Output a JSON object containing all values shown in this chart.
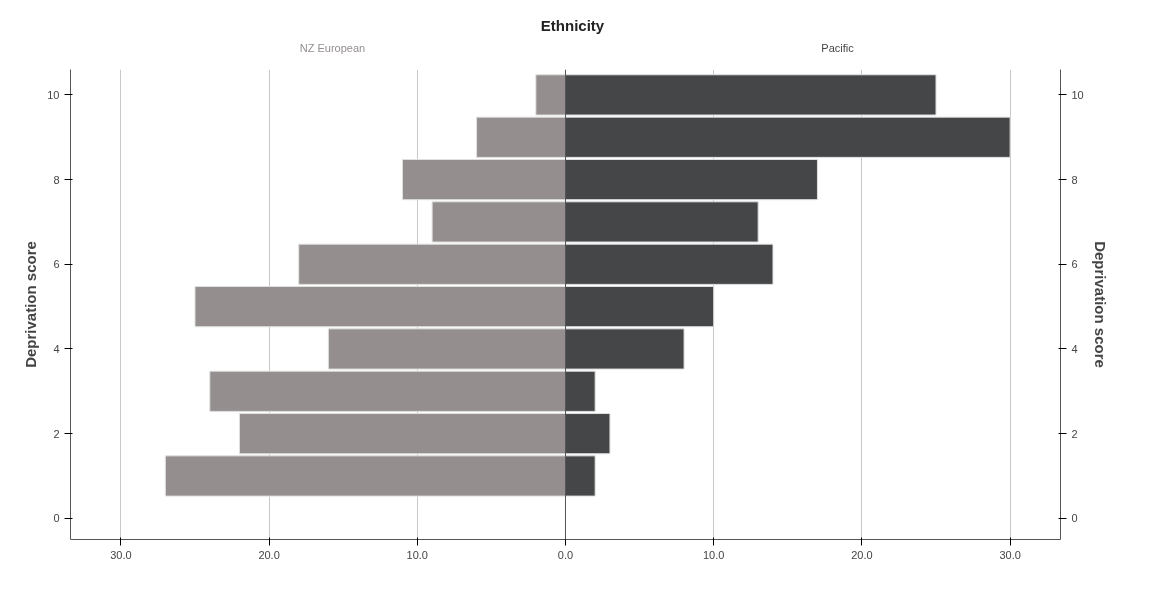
{
  "chart_data": {
    "type": "bar",
    "orientation": "horizontal",
    "title": "Ethnicity",
    "ylabel": "Deprivation score",
    "y2label": "Deprivation score",
    "x": [
      1,
      2,
      3,
      4,
      5,
      6,
      7,
      8,
      9,
      10
    ],
    "series": [
      {
        "name": "NZ European",
        "color": "#948f8e",
        "values": [
          -27,
          -22,
          -24,
          -16,
          -25,
          -18,
          -9,
          -11,
          -6,
          -2
        ]
      },
      {
        "name": "Pacific",
        "color": "#454648",
        "values": [
          2,
          3,
          2,
          8,
          10,
          14,
          13,
          17,
          30,
          25
        ]
      }
    ],
    "xlim": [
      -33.4,
      33.4
    ],
    "xticks": [
      {
        "value": -30,
        "label": "30.0"
      },
      {
        "value": -20,
        "label": "20.0"
      },
      {
        "value": -10,
        "label": "10.0"
      },
      {
        "value": 0,
        "label": "0.0"
      },
      {
        "value": 10,
        "label": "10.0"
      },
      {
        "value": 20,
        "label": "20.0"
      },
      {
        "value": 30,
        "label": "30.0"
      }
    ],
    "ylim": [
      -0.5,
      10.6
    ],
    "yticks": [
      0,
      2,
      4,
      6,
      8,
      10
    ],
    "y2lim": [
      -0.5,
      10.6
    ],
    "y2ticks": [
      0,
      2,
      4,
      6,
      8,
      10
    ],
    "stacked": true,
    "grid": "x"
  }
}
